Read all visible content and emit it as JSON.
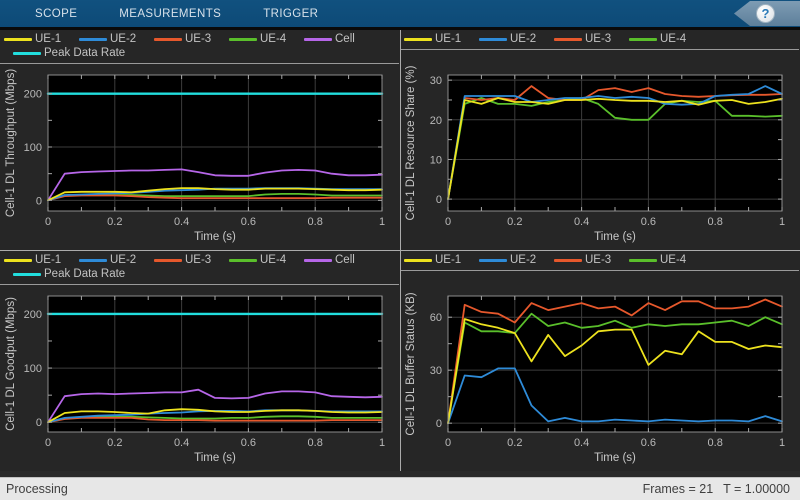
{
  "toolbar": {
    "tabs": [
      {
        "label": "SCOPE"
      },
      {
        "label": "MEASUREMENTS"
      },
      {
        "label": "TRIGGER"
      }
    ],
    "help_icon": "?"
  },
  "statusbar": {
    "left": "Processing",
    "frames": "Frames = 21",
    "time": "T = 1.00000"
  },
  "colors": {
    "toolbar_bg": "#0e4c7b",
    "panel_bg": "#262626",
    "plot_bg": "#000000",
    "grid": "#3d3d3d",
    "axis_line": "#8c8c8c",
    "tick": "#a8a8a8",
    "tick_label": "#b9b9b9",
    "legend_text": "#c3c3c3",
    "divider": "#ababab",
    "status_bg": "#e7e7e7",
    "status_text": "#3f3f3f",
    "series": {
      "ue1": "#EDE21E",
      "ue2": "#2E8BD8",
      "ue3": "#E6582C",
      "ue4": "#5ABF2B",
      "cell": "#B666E8",
      "peak": "#22DEDE"
    }
  },
  "chart_data": [
    {
      "type": "line",
      "ylabel": "Cell-1 DL Throughput (Mbps)",
      "xlabel": "Time (s)",
      "xlim": [
        0,
        1
      ],
      "ylim": [
        -20,
        235
      ],
      "xticks": [
        0,
        0.2,
        0.4,
        0.6,
        0.8,
        1
      ],
      "xtick_labels": [
        "0",
        "0.2",
        "0.4",
        "0.6",
        "0.8",
        "1"
      ],
      "xminor": [
        0.1,
        0.3,
        0.5,
        0.7,
        0.9
      ],
      "yticks": [
        0,
        100,
        200
      ],
      "yminor": [
        50,
        150
      ],
      "legend_rows": [
        [
          0,
          1,
          2,
          3,
          4
        ],
        [
          5
        ]
      ],
      "x": [
        0,
        0.05,
        0.1,
        0.15,
        0.2,
        0.25,
        0.3,
        0.35,
        0.4,
        0.45,
        0.5,
        0.55,
        0.6,
        0.65,
        0.7,
        0.75,
        0.8,
        0.85,
        0.9,
        0.95,
        1
      ],
      "series": [
        {
          "name": "UE-1",
          "color_key": "ue1",
          "width": 1.8,
          "values": [
            0,
            15,
            16,
            16,
            16,
            15,
            18,
            21,
            23,
            23,
            21,
            20,
            20,
            22,
            22,
            22,
            21,
            20,
            19,
            19,
            20
          ]
        },
        {
          "name": "UE-2",
          "color_key": "ue2",
          "width": 1.8,
          "values": [
            0,
            10,
            11,
            12,
            13,
            14,
            16,
            18,
            19,
            20,
            22,
            22,
            22,
            23,
            23,
            23,
            22,
            21,
            21,
            21,
            21
          ]
        },
        {
          "name": "UE-3",
          "color_key": "ue3",
          "width": 1.8,
          "values": [
            0,
            8,
            9,
            9,
            9,
            8,
            6,
            5,
            4,
            4,
            4,
            4,
            4,
            4,
            4,
            4,
            4,
            5,
            5,
            5,
            5
          ]
        },
        {
          "name": "UE-4",
          "color_key": "ue4",
          "width": 1.8,
          "values": [
            0,
            9,
            10,
            10,
            10,
            10,
            9,
            8,
            8,
            8,
            8,
            8,
            8,
            11,
            12,
            12,
            11,
            9,
            9,
            9,
            9
          ]
        },
        {
          "name": "Cell",
          "color_key": "cell",
          "width": 1.8,
          "values": [
            0,
            50,
            53,
            54,
            55,
            56,
            56,
            57,
            58,
            53,
            47,
            46,
            46,
            52,
            56,
            57,
            56,
            50,
            47,
            47,
            48
          ]
        },
        {
          "name": "Peak Data Rate",
          "color_key": "peak",
          "width": 2.4,
          "values": [
            200,
            200,
            200,
            200,
            200,
            200,
            200,
            200,
            200,
            200,
            200,
            200,
            200,
            200,
            200,
            200,
            200,
            200,
            200,
            200,
            200
          ]
        }
      ]
    },
    {
      "type": "line",
      "ylabel": "Cell-1 DL Resource Share (%)",
      "xlabel": "Time (s)",
      "xlim": [
        0,
        1
      ],
      "ylim": [
        -3,
        31.3
      ],
      "xticks": [
        0,
        0.2,
        0.4,
        0.6,
        0.8,
        1
      ],
      "xtick_labels": [
        "0",
        "0.2",
        "0.4",
        "0.6",
        "0.8",
        "1"
      ],
      "xminor": [
        0.1,
        0.3,
        0.5,
        0.7,
        0.9
      ],
      "yticks": [
        0,
        10,
        20,
        30
      ],
      "yminor": [
        5,
        15,
        25
      ],
      "legend_rows": [
        [
          0,
          1,
          2,
          3
        ]
      ],
      "x": [
        0,
        0.05,
        0.1,
        0.15,
        0.2,
        0.25,
        0.3,
        0.35,
        0.4,
        0.45,
        0.5,
        0.55,
        0.6,
        0.65,
        0.7,
        0.75,
        0.8,
        0.85,
        0.9,
        0.95,
        1
      ],
      "series": [
        {
          "name": "UE-1",
          "color_key": "ue1",
          "width": 1.8,
          "values": [
            0,
            25,
            24,
            25.5,
            24.5,
            24.5,
            24,
            25,
            25,
            25.3,
            25,
            24.8,
            24.8,
            24.5,
            24.8,
            23.8,
            24.8,
            25,
            24,
            24.5,
            25.3
          ]
        },
        {
          "name": "UE-2",
          "color_key": "ue2",
          "width": 1.8,
          "values": [
            0,
            26,
            26,
            26,
            26,
            24.5,
            25,
            25.5,
            25.5,
            26,
            25.5,
            25.8,
            25.5,
            24,
            23.8,
            24,
            26,
            26.3,
            26.5,
            28.5,
            26.5
          ]
        },
        {
          "name": "UE-3",
          "color_key": "ue3",
          "width": 1.8,
          "values": [
            0,
            25.5,
            25,
            25.5,
            25,
            28.5,
            25.5,
            25,
            25,
            27.5,
            28,
            27,
            28,
            26.5,
            26,
            25.8,
            26,
            26.2,
            26.3,
            26.3,
            26.5
          ]
        },
        {
          "name": "UE-4",
          "color_key": "ue4",
          "width": 1.8,
          "values": [
            0,
            24,
            25.5,
            24,
            24,
            23.5,
            24.5,
            25,
            25.5,
            24,
            20.5,
            20,
            20,
            24,
            24.8,
            24.5,
            24.8,
            21,
            21,
            20.8,
            21
          ]
        }
      ]
    },
    {
      "type": "line",
      "ylabel": "Cell-1 DL Goodput (Mbps)",
      "xlabel": "Time (s)",
      "xlim": [
        0,
        1
      ],
      "ylim": [
        -18,
        233
      ],
      "xticks": [
        0,
        0.2,
        0.4,
        0.6,
        0.8,
        1
      ],
      "xtick_labels": [
        "0",
        "0.2",
        "0.4",
        "0.6",
        "0.8",
        "1"
      ],
      "xminor": [
        0.1,
        0.3,
        0.5,
        0.7,
        0.9
      ],
      "yticks": [
        0,
        100,
        200
      ],
      "yminor": [
        50,
        150
      ],
      "legend_rows": [
        [
          0,
          1,
          2,
          3,
          4
        ],
        [
          5
        ]
      ],
      "x": [
        0,
        0.05,
        0.1,
        0.15,
        0.2,
        0.25,
        0.3,
        0.35,
        0.4,
        0.45,
        0.5,
        0.55,
        0.6,
        0.65,
        0.7,
        0.75,
        0.8,
        0.85,
        0.9,
        0.95,
        1
      ],
      "series": [
        {
          "name": "UE-1",
          "color_key": "ue1",
          "width": 1.8,
          "values": [
            0,
            17,
            20,
            20,
            19,
            17,
            16,
            22,
            24,
            23,
            20,
            19,
            19,
            21,
            22,
            22,
            21,
            19,
            18,
            18,
            19
          ]
        },
        {
          "name": "UE-2",
          "color_key": "ue2",
          "width": 1.8,
          "values": [
            0,
            8,
            10,
            12,
            13,
            14,
            16,
            17,
            18,
            20,
            21,
            21,
            20,
            22,
            22,
            22,
            21,
            20,
            20,
            20,
            20
          ]
        },
        {
          "name": "UE-3",
          "color_key": "ue3",
          "width": 1.8,
          "values": [
            0,
            6,
            8,
            8,
            8,
            8,
            5,
            4,
            4,
            4,
            3,
            3,
            3,
            3,
            3,
            3,
            3,
            4,
            4,
            4,
            4
          ]
        },
        {
          "name": "UE-4",
          "color_key": "ue4",
          "width": 1.8,
          "values": [
            0,
            7,
            9,
            10,
            10,
            10,
            9,
            8,
            7,
            7,
            7,
            8,
            8,
            10,
            11,
            11,
            10,
            8,
            8,
            8,
            8
          ]
        },
        {
          "name": "Cell",
          "color_key": "cell",
          "width": 1.8,
          "values": [
            0,
            48,
            52,
            53,
            52,
            53,
            54,
            55,
            55,
            60,
            45,
            44,
            45,
            53,
            57,
            57,
            55,
            48,
            47,
            46,
            47
          ]
        },
        {
          "name": "Peak Data Rate",
          "color_key": "peak",
          "width": 2.4,
          "values": [
            200,
            200,
            200,
            200,
            200,
            200,
            200,
            200,
            200,
            200,
            200,
            200,
            200,
            200,
            200,
            200,
            200,
            200,
            200,
            200,
            200
          ]
        }
      ]
    },
    {
      "type": "line",
      "ylabel": "Cell-1 DL Buffer Status (KB)",
      "xlabel": "Time (s)",
      "xlim": [
        0,
        1
      ],
      "ylim": [
        -5,
        72
      ],
      "xticks": [
        0,
        0.2,
        0.4,
        0.6,
        0.8,
        1
      ],
      "xtick_labels": [
        "0",
        "0.2",
        "0.4",
        "0.6",
        "0.8",
        "1"
      ],
      "xminor": [
        0.1,
        0.3,
        0.5,
        0.7,
        0.9
      ],
      "yticks": [
        0,
        30,
        60
      ],
      "yminor": [
        15,
        45
      ],
      "legend_rows": [
        [
          0,
          1,
          2,
          3
        ]
      ],
      "x": [
        0,
        0.05,
        0.1,
        0.15,
        0.2,
        0.25,
        0.3,
        0.35,
        0.4,
        0.45,
        0.5,
        0.55,
        0.6,
        0.65,
        0.7,
        0.75,
        0.8,
        0.85,
        0.9,
        0.95,
        1
      ],
      "series": [
        {
          "name": "UE-1",
          "color_key": "ue1",
          "width": 1.8,
          "values": [
            0,
            59,
            56,
            54,
            51,
            35,
            50,
            38,
            44,
            52,
            53,
            53,
            33,
            41,
            39,
            52,
            46,
            46,
            42,
            44,
            43
          ]
        },
        {
          "name": "UE-2",
          "color_key": "ue2",
          "width": 1.8,
          "values": [
            0,
            27,
            26,
            31,
            31,
            10,
            1,
            3,
            1,
            1,
            2,
            1.5,
            1,
            2,
            1.5,
            1,
            1.5,
            1.5,
            1,
            4,
            1
          ]
        },
        {
          "name": "UE-3",
          "color_key": "ue3",
          "width": 1.8,
          "values": [
            0,
            67,
            63,
            62,
            57,
            68,
            64,
            66,
            68,
            65,
            66,
            61,
            68,
            64,
            69,
            69,
            65,
            65,
            66,
            70,
            66
          ]
        },
        {
          "name": "UE-4",
          "color_key": "ue4",
          "width": 1.8,
          "values": [
            0,
            57,
            52,
            52,
            51,
            62,
            55,
            57,
            54,
            55,
            58,
            54,
            56,
            55,
            56,
            56,
            57,
            58,
            55,
            60,
            56
          ]
        }
      ]
    }
  ]
}
